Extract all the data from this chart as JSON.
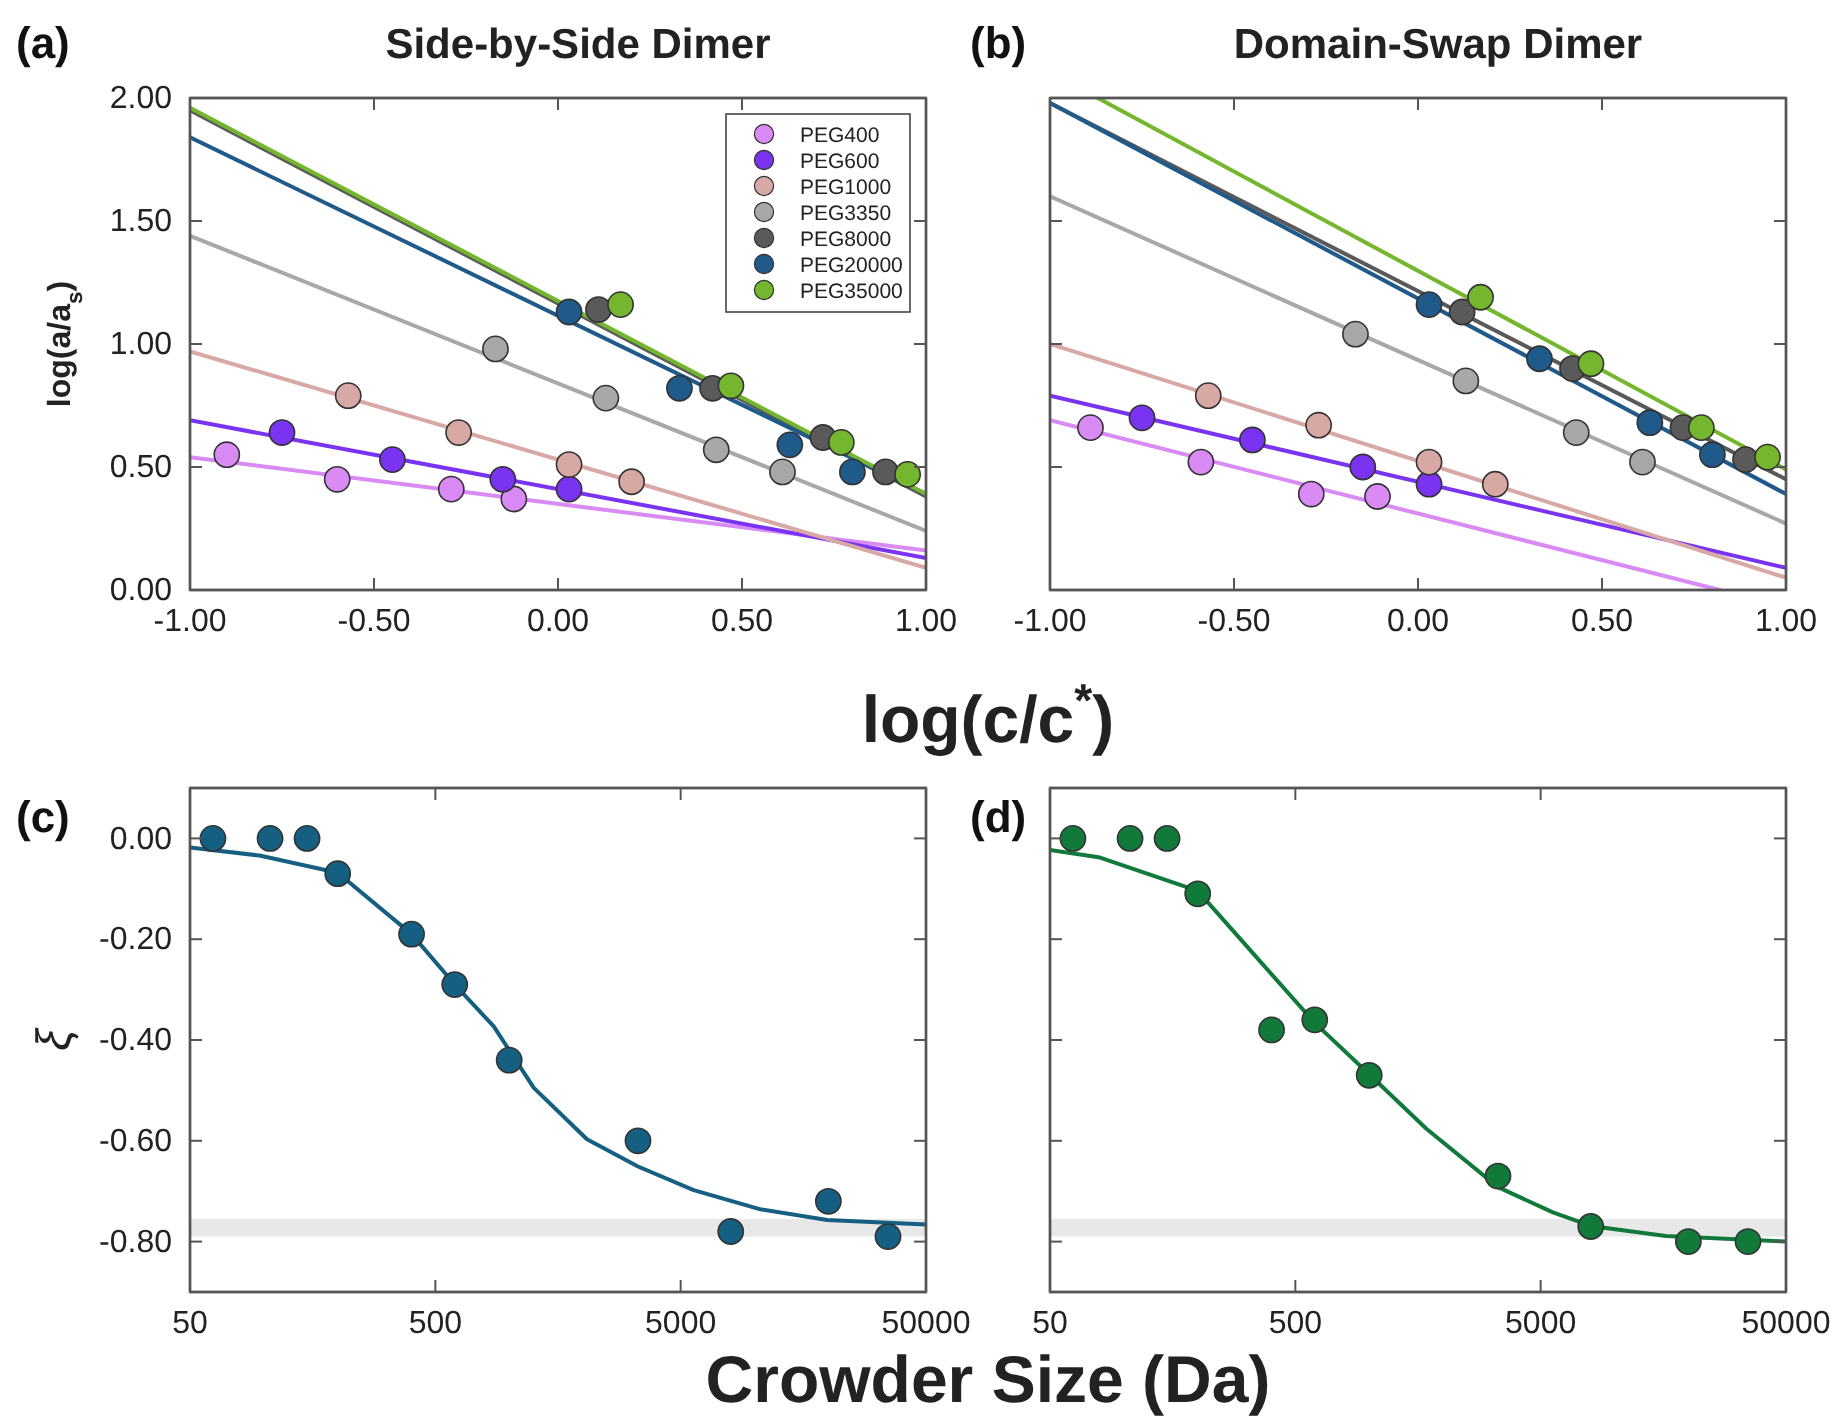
{
  "chart_data": [
    {
      "type": "scatter",
      "title": "Side-by-Side Dimer",
      "xlabel": "log(c/c$^{*}$)",
      "ylabel": "log(a/a$_{s}$)",
      "annotations": [
        "(a)"
      ],
      "marker": "circle",
      "legend": "top right",
      "grid": false,
      "xlim": [
        -1,
        1
      ],
      "xticks": [
        {
          "value": -1,
          "label": "-1.00"
        },
        {
          "value": -0.5,
          "label": "-0.50"
        },
        {
          "value": 0,
          "label": "0.00"
        },
        {
          "value": 0.5,
          "label": "0.50"
        },
        {
          "value": 1,
          "label": "1.00"
        }
      ],
      "ylim": [
        0,
        2
      ],
      "yticks": [
        {
          "value": 0,
          "label": "0.00"
        },
        {
          "value": 0.5,
          "label": "0.50"
        },
        {
          "value": 1,
          "label": "1.00"
        },
        {
          "value": 1.5,
          "label": "1.50"
        },
        {
          "value": 2,
          "label": "2.00"
        }
      ],
      "series": [
        {
          "type": "line",
          "marker": "none",
          "color": "#d98af5",
          "x": [
            -1,
            1
          ],
          "values": [
            0.54,
            0.16
          ]
        },
        {
          "type": "line",
          "marker": "none",
          "color": "#7a33f0",
          "x": [
            -1,
            1
          ],
          "values": [
            0.69,
            0.13
          ]
        },
        {
          "type": "line",
          "marker": "none",
          "color": "#d8a8a5",
          "x": [
            -1,
            1
          ],
          "values": [
            0.97,
            0.09
          ]
        },
        {
          "type": "line",
          "marker": "none",
          "color": "#a8a8a8",
          "x": [
            -1,
            1
          ],
          "values": [
            1.44,
            0.24
          ]
        },
        {
          "type": "line",
          "marker": "none",
          "color": "#5a5a5a",
          "x": [
            -1,
            1
          ],
          "values": [
            1.95,
            0.38
          ]
        },
        {
          "type": "line",
          "marker": "none",
          "color": "#1f5a8a",
          "x": [
            -1,
            1
          ],
          "values": [
            1.84,
            0.39
          ]
        },
        {
          "type": "line",
          "marker": "none",
          "color": "#74b72e",
          "x": [
            -1,
            1
          ],
          "values": [
            1.96,
            0.39
          ]
        },
        {
          "name": "PEG400",
          "color": "#d98af5",
          "x": [
            -0.9,
            -0.6,
            -0.29,
            -0.12
          ],
          "values": [
            0.55,
            0.45,
            0.41,
            0.37
          ]
        },
        {
          "name": "PEG600",
          "color": "#7a33f0",
          "x": [
            -0.75,
            -0.45,
            -0.15,
            0.03
          ],
          "values": [
            0.64,
            0.53,
            0.45,
            0.41
          ]
        },
        {
          "name": "PEG1000",
          "color": "#d8a8a5",
          "x": [
            -0.57,
            -0.27,
            0.03,
            0.2
          ],
          "values": [
            0.79,
            0.64,
            0.51,
            0.44
          ]
        },
        {
          "name": "PEG3350",
          "color": "#a8a8a8",
          "x": [
            -0.17,
            0.13,
            0.43,
            0.61
          ],
          "values": [
            0.98,
            0.78,
            0.57,
            0.48
          ]
        },
        {
          "name": "PEG8000",
          "color": "#5a5a5a",
          "x": [
            0.11,
            0.42,
            0.72,
            0.89
          ],
          "values": [
            1.14,
            0.82,
            0.62,
            0.48
          ]
        },
        {
          "name": "PEG20000",
          "color": "#1f5a8a",
          "x": [
            0.03,
            0.33,
            0.63,
            0.8
          ],
          "values": [
            1.13,
            0.82,
            0.59,
            0.48
          ]
        },
        {
          "name": "PEG35000",
          "color": "#74b72e",
          "x": [
            0.17,
            0.47,
            0.77,
            0.95
          ],
          "values": [
            1.16,
            0.83,
            0.6,
            0.47
          ]
        }
      ]
    },
    {
      "type": "scatter",
      "title": "Domain-Swap Dimer",
      "annotations": [
        "(b)"
      ],
      "marker": "circle",
      "grid": false,
      "tick_labels": "x",
      "xlim": [
        -1,
        1
      ],
      "xticks": [
        {
          "value": -1,
          "label": "-1.00"
        },
        {
          "value": -0.5,
          "label": "-0.50"
        },
        {
          "value": 0,
          "label": "0.00"
        },
        {
          "value": 0.5,
          "label": "0.50"
        },
        {
          "value": 1,
          "label": "1.00"
        }
      ],
      "ylim": [
        0,
        2
      ],
      "yticks": [
        {
          "value": 0,
          "label": null
        },
        {
          "value": 0.5,
          "label": null
        },
        {
          "value": 1,
          "label": null
        },
        {
          "value": 1.5,
          "label": null
        },
        {
          "value": 2,
          "label": null
        }
      ],
      "series": [
        {
          "type": "line",
          "marker": "none",
          "color": "#d98af5",
          "x": [
            -1,
            0.82
          ],
          "values": [
            0.69,
            0
          ]
        },
        {
          "type": "line",
          "marker": "none",
          "color": "#7a33f0",
          "x": [
            -1,
            1
          ],
          "values": [
            0.79,
            0.09
          ]
        },
        {
          "type": "line",
          "marker": "none",
          "color": "#d8a8a5",
          "x": [
            -1,
            1
          ],
          "values": [
            1.0,
            0.05
          ]
        },
        {
          "type": "line",
          "marker": "none",
          "color": "#a8a8a8",
          "x": [
            -1,
            1
          ],
          "values": [
            1.6,
            0.27
          ]
        },
        {
          "type": "line",
          "marker": "none",
          "color": "#5a5a5a",
          "x": [
            -1,
            1
          ],
          "values": [
            1.98,
            0.45
          ]
        },
        {
          "type": "line",
          "marker": "none",
          "color": "#1f5a8a",
          "x": [
            -1,
            1
          ],
          "values": [
            1.98,
            0.39
          ]
        },
        {
          "type": "line",
          "marker": "none",
          "color": "#74b72e",
          "x": [
            -0.87,
            1
          ],
          "values": [
            2.0,
            0.49
          ]
        },
        {
          "color": "#d98af5",
          "x": [
            -0.89,
            -0.59,
            -0.29,
            -0.11
          ],
          "values": [
            0.66,
            0.52,
            0.39,
            0.38
          ]
        },
        {
          "color": "#7a33f0",
          "x": [
            -0.75,
            -0.45,
            -0.15,
            0.03
          ],
          "values": [
            0.7,
            0.61,
            0.5,
            0.43
          ]
        },
        {
          "color": "#d8a8a5",
          "x": [
            -0.57,
            -0.27,
            0.03,
            0.21
          ],
          "values": [
            0.79,
            0.67,
            0.52,
            0.43
          ]
        },
        {
          "color": "#a8a8a8",
          "x": [
            -0.17,
            0.13,
            0.43,
            0.61
          ],
          "values": [
            1.04,
            0.85,
            0.64,
            0.52
          ]
        },
        {
          "color": "#5a5a5a",
          "x": [
            0.12,
            0.42,
            0.72,
            0.89
          ],
          "values": [
            1.13,
            0.9,
            0.66,
            0.53
          ]
        },
        {
          "color": "#1f5a8a",
          "x": [
            0.03,
            0.33,
            0.63,
            0.8
          ],
          "values": [
            1.16,
            0.94,
            0.68,
            0.55
          ]
        },
        {
          "color": "#74b72e",
          "x": [
            0.17,
            0.47,
            0.77,
            0.95
          ],
          "values": [
            1.19,
            0.92,
            0.66,
            0.54
          ]
        }
      ]
    },
    {
      "type": "scatter",
      "xlabel": "Crowder Size (Da)",
      "ylabel": "ξ",
      "annotations": [
        "(c)"
      ],
      "marker": "circle",
      "grid": false,
      "log": "x",
      "xlim": [
        50,
        50000
      ],
      "xticks": [
        50,
        500,
        5000,
        50000
      ],
      "ylim": [
        -0.9,
        0.1
      ],
      "yticks": [
        {
          "value": -0.8,
          "label": "-0.80"
        },
        {
          "value": -0.6,
          "label": "-0.60"
        },
        {
          "value": -0.4,
          "label": "-0.40"
        },
        {
          "value": -0.2,
          "label": "-0.20"
        },
        {
          "value": 0,
          "label": "0.00"
        }
      ],
      "bands": [
        {
          "axis": "y",
          "from": -0.79,
          "to": -0.755,
          "color": "#e8e8e8"
        }
      ],
      "series": [
        {
          "type": "line",
          "marker": "none",
          "color": "#155f82",
          "x": [
            50,
            96,
            200,
            400,
            600,
            865,
            1260,
            2075,
            3350,
            5650,
            10570,
            19770,
            50000
          ],
          "values": [
            -0.018,
            -0.034,
            -0.068,
            -0.19,
            -0.29,
            -0.373,
            -0.495,
            -0.597,
            -0.651,
            -0.698,
            -0.736,
            -0.757,
            -0.766
          ]
        },
        {
          "color": "#155f82",
          "x": [
            62,
            106,
            150,
            200,
            400,
            600,
            1000,
            3350,
            8000,
            20000,
            35000
          ],
          "values": [
            0,
            0,
            0,
            -0.07,
            -0.19,
            -0.29,
            -0.44,
            -0.6,
            -0.78,
            -0.72,
            -0.79
          ]
        }
      ]
    },
    {
      "type": "scatter",
      "annotations": [
        "(d)"
      ],
      "marker": "circle",
      "grid": false,
      "log": "x",
      "tick_labels": "x",
      "xlim": [
        50,
        50000
      ],
      "xticks": [
        50,
        500,
        5000,
        50000
      ],
      "ylim": [
        -0.9,
        0.1
      ],
      "yticks": [
        {
          "value": -0.8,
          "label": null
        },
        {
          "value": -0.6,
          "label": null
        },
        {
          "value": -0.4,
          "label": null
        },
        {
          "value": -0.2,
          "label": null
        },
        {
          "value": 0,
          "label": null
        }
      ],
      "bands": [
        {
          "axis": "y",
          "from": -0.79,
          "to": -0.755,
          "color": "#e8e8e8"
        }
      ],
      "series": [
        {
          "type": "line",
          "marker": "none",
          "color": "#117a3a",
          "x": [
            50,
            80,
            200,
            381,
            600,
            1000,
            1710,
            3350,
            5610,
            8000,
            16200,
            50000
          ],
          "values": [
            -0.023,
            -0.038,
            -0.104,
            -0.258,
            -0.366,
            -0.468,
            -0.576,
            -0.692,
            -0.742,
            -0.769,
            -0.789,
            -0.8
          ]
        },
        {
          "color": "#117a3a",
          "x": [
            62,
            106,
            150,
            200,
            400,
            600,
            1000,
            3350,
            8000,
            20000,
            35000
          ],
          "values": [
            0,
            0,
            0,
            -0.11,
            -0.38,
            -0.36,
            -0.47,
            -0.67,
            -0.77,
            -0.8,
            -0.8
          ]
        }
      ]
    }
  ]
}
